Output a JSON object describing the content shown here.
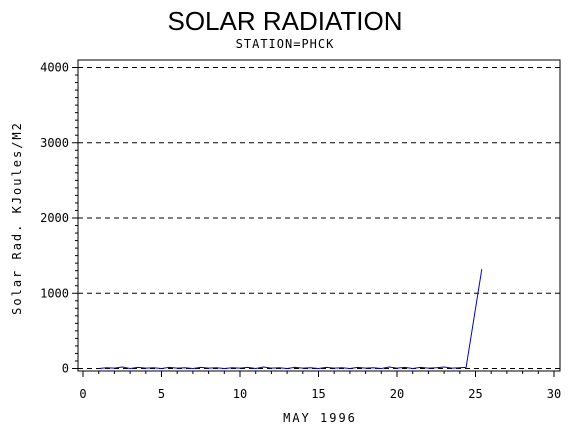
{
  "chart_data": {
    "type": "line",
    "title": "SOLAR RADIATION",
    "subtitle": "STATION=PHCK",
    "xlabel": "MAY 1996",
    "ylabel": "Solar Rad. KJoules/M2",
    "xlim": [
      0,
      30
    ],
    "ylim": [
      0,
      4000
    ],
    "x_ticks": [
      0,
      5,
      10,
      15,
      20,
      25,
      30
    ],
    "y_ticks": [
      0,
      1000,
      2000,
      3000,
      4000
    ],
    "grid": "horizontal dashed",
    "series": [
      {
        "color": "#0000cc",
        "x": [
          1.0,
          1.5,
          2.0,
          2.5,
          3.0,
          3.5,
          4.0,
          4.5,
          5.0,
          5.5,
          6.0,
          6.5,
          7.0,
          7.5,
          8.0,
          8.5,
          9.0,
          9.5,
          10.0,
          10.5,
          11.0,
          11.5,
          12.0,
          12.5,
          13.0,
          13.5,
          14.0,
          14.5,
          15.0,
          15.5,
          16.0,
          16.5,
          17.0,
          17.5,
          18.0,
          18.5,
          19.0,
          19.5,
          20.0,
          20.5,
          21.0,
          21.5,
          22.0,
          22.5,
          23.0,
          23.5,
          24.0,
          24.4,
          25.4
        ],
        "values": [
          0,
          10,
          5,
          20,
          0,
          15,
          5,
          10,
          0,
          15,
          5,
          10,
          0,
          15,
          5,
          10,
          0,
          10,
          5,
          15,
          0,
          20,
          5,
          10,
          0,
          15,
          5,
          10,
          0,
          15,
          5,
          10,
          0,
          15,
          5,
          10,
          0,
          20,
          5,
          15,
          0,
          15,
          5,
          10,
          20,
          5,
          10,
          15,
          1320
        ]
      }
    ]
  }
}
